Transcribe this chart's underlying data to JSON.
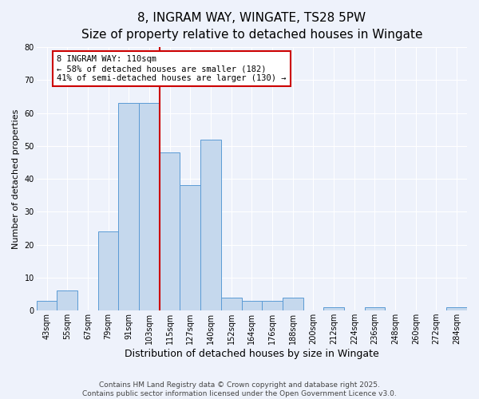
{
  "title": "8, INGRAM WAY, WINGATE, TS28 5PW",
  "subtitle": "Size of property relative to detached houses in Wingate",
  "xlabel": "Distribution of detached houses by size in Wingate",
  "ylabel": "Number of detached properties",
  "categories": [
    "43sqm",
    "55sqm",
    "67sqm",
    "79sqm",
    "91sqm",
    "103sqm",
    "115sqm",
    "127sqm",
    "140sqm",
    "152sqm",
    "164sqm",
    "176sqm",
    "188sqm",
    "200sqm",
    "212sqm",
    "224sqm",
    "236sqm",
    "248sqm",
    "260sqm",
    "272sqm",
    "284sqm"
  ],
  "values": [
    3,
    6,
    0,
    24,
    63,
    63,
    48,
    38,
    52,
    4,
    3,
    3,
    4,
    0,
    1,
    0,
    1,
    0,
    0,
    0,
    1
  ],
  "bar_color": "#c5d8ed",
  "bar_edge_color": "#5b9bd5",
  "background_color": "#eef2fb",
  "grid_color": "#ffffff",
  "vline_label": "8 INGRAM WAY: 110sqm",
  "annotation_line1": "← 58% of detached houses are smaller (182)",
  "annotation_line2": "41% of semi-detached houses are larger (130) →",
  "box_facecolor": "#ffffff",
  "box_edgecolor": "#cc0000",
  "vline_color": "#cc0000",
  "ylim": [
    0,
    80
  ],
  "yticks": [
    0,
    10,
    20,
    30,
    40,
    50,
    60,
    70,
    80
  ],
  "footer1": "Contains HM Land Registry data © Crown copyright and database right 2025.",
  "footer2": "Contains public sector information licensed under the Open Government Licence v3.0.",
  "title_fontsize": 11,
  "xlabel_fontsize": 9,
  "ylabel_fontsize": 8,
  "tick_fontsize": 7,
  "annotation_fontsize": 7.5,
  "footer_fontsize": 6.5
}
